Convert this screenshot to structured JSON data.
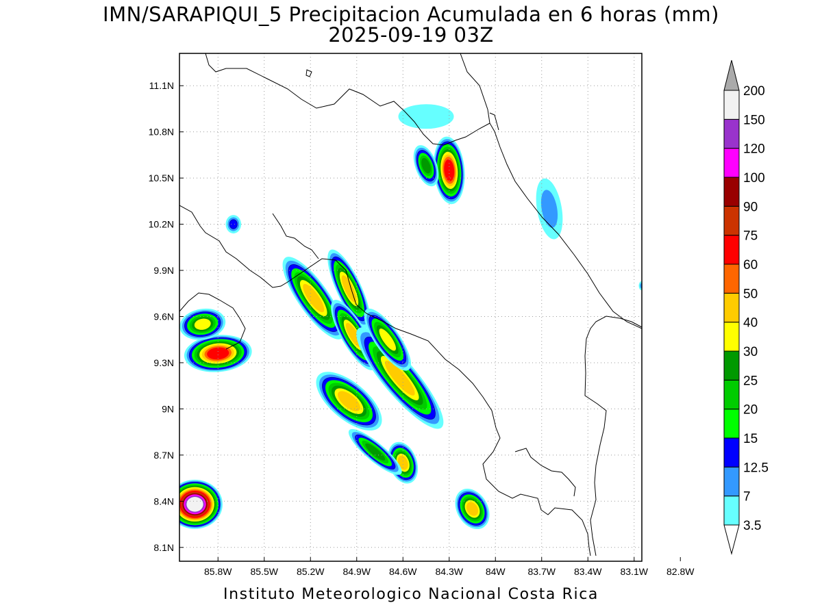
{
  "title": {
    "line1": "IMN/SARAPIQUI_5 Precipitacion Acumulada en 6 horas (mm)",
    "line2": "2025-09-19 03Z"
  },
  "credit": "Instituto Meteorologico Nacional Costa Rica",
  "map": {
    "lon_range": [
      -86.05,
      -83.05
    ],
    "lat_range": [
      8.01,
      11.31
    ],
    "lon_ticks": [
      {
        "value": -85.8,
        "label": "85.8W"
      },
      {
        "value": -85.5,
        "label": "85.5W"
      },
      {
        "value": -85.2,
        "label": "85.2W"
      },
      {
        "value": -84.9,
        "label": "84.9W"
      },
      {
        "value": -84.6,
        "label": "84.6W"
      },
      {
        "value": -84.3,
        "label": "84.3W"
      },
      {
        "value": -84.0,
        "label": "84W"
      },
      {
        "value": -83.7,
        "label": "83.7W"
      },
      {
        "value": -83.4,
        "label": "83.4W"
      },
      {
        "value": -83.1,
        "label": "83.1W"
      },
      {
        "value": -82.8,
        "label": "82.8W"
      }
    ],
    "lat_ticks": [
      {
        "value": 8.1,
        "label": "8.1N"
      },
      {
        "value": 8.4,
        "label": "8.4N"
      },
      {
        "value": 8.7,
        "label": "8.7N"
      },
      {
        "value": 9.0,
        "label": "9N"
      },
      {
        "value": 9.3,
        "label": "9.3N"
      },
      {
        "value": 9.6,
        "label": "9.6N"
      },
      {
        "value": 9.9,
        "label": "9.9N"
      },
      {
        "value": 10.2,
        "label": "10.2N"
      },
      {
        "value": 10.5,
        "label": "10.5N"
      },
      {
        "value": 10.8,
        "label": "10.8N"
      },
      {
        "value": 11.1,
        "label": "11.1N"
      }
    ],
    "grid": "dotted"
  },
  "colorbar": {
    "levels": [
      "3.5",
      "7",
      "12.5",
      "15",
      "20",
      "25",
      "30",
      "40",
      "50",
      "60",
      "75",
      "90",
      "100",
      "120",
      "150",
      "200"
    ],
    "colors": [
      "#66ffff",
      "#3399ff",
      "#0000ff",
      "#00ff00",
      "#00cc00",
      "#009900",
      "#ffff00",
      "#ffcc00",
      "#ff6600",
      "#ff0000",
      "#cc3300",
      "#990000",
      "#ff00ff",
      "#9933cc",
      "#f2f2f2"
    ],
    "over_color": "#aaaaaa",
    "under_color": "#ffffff"
  },
  "rain_cells": [
    {
      "lon": -85.18,
      "lat": 9.72,
      "peak": 40,
      "rx": 0.1,
      "ry": 0.32,
      "rot": 35
    },
    {
      "lon": -84.95,
      "lat": 9.78,
      "peak": 40,
      "rx": 0.08,
      "ry": 0.28,
      "rot": 25
    },
    {
      "lon": -84.92,
      "lat": 9.48,
      "peak": 40,
      "rx": 0.08,
      "ry": 0.26,
      "rot": 30
    },
    {
      "lon": -84.62,
      "lat": 9.2,
      "peak": 40,
      "rx": 0.11,
      "ry": 0.42,
      "rot": 40
    },
    {
      "lon": -84.7,
      "lat": 9.45,
      "peak": 30,
      "rx": 0.08,
      "ry": 0.24,
      "rot": 35
    },
    {
      "lon": -84.95,
      "lat": 9.05,
      "peak": 40,
      "rx": 0.12,
      "ry": 0.26,
      "rot": 50
    },
    {
      "lon": -84.6,
      "lat": 8.65,
      "peak": 40,
      "rx": 0.09,
      "ry": 0.14,
      "rot": 20
    },
    {
      "lon": -84.15,
      "lat": 8.35,
      "peak": 40,
      "rx": 0.1,
      "ry": 0.14,
      "rot": 30
    },
    {
      "lon": -84.78,
      "lat": 8.72,
      "peak": 25,
      "rx": 0.06,
      "ry": 0.22,
      "rot": 50
    },
    {
      "lon": -84.3,
      "lat": 10.55,
      "peak": 60,
      "rx": 0.1,
      "ry": 0.22,
      "rot": 5
    },
    {
      "lon": -84.45,
      "lat": 10.58,
      "peak": 25,
      "rx": 0.07,
      "ry": 0.14,
      "rot": 20
    },
    {
      "lon": -85.8,
      "lat": 9.36,
      "peak": 60,
      "rx": 0.22,
      "ry": 0.12,
      "rot": 5
    },
    {
      "lon": -85.9,
      "lat": 9.55,
      "peak": 30,
      "rx": 0.15,
      "ry": 0.1,
      "rot": 10
    },
    {
      "lon": -85.95,
      "lat": 8.38,
      "peak": 150,
      "rx": 0.18,
      "ry": 0.16,
      "rot": 0
    },
    {
      "lon": -83.65,
      "lat": 10.3,
      "peak": 7,
      "rx": 0.08,
      "ry": 0.2,
      "rot": 10
    },
    {
      "lon": -84.45,
      "lat": 10.9,
      "peak": 3.5,
      "rx": 0.18,
      "ry": 0.08,
      "rot": 0
    },
    {
      "lon": -85.7,
      "lat": 10.2,
      "peak": 12.5,
      "rx": 0.05,
      "ry": 0.06,
      "rot": 0
    },
    {
      "lon": -83.05,
      "lat": 9.8,
      "peak": 7,
      "rx": 0.02,
      "ry": 0.03,
      "rot": 0
    }
  ]
}
